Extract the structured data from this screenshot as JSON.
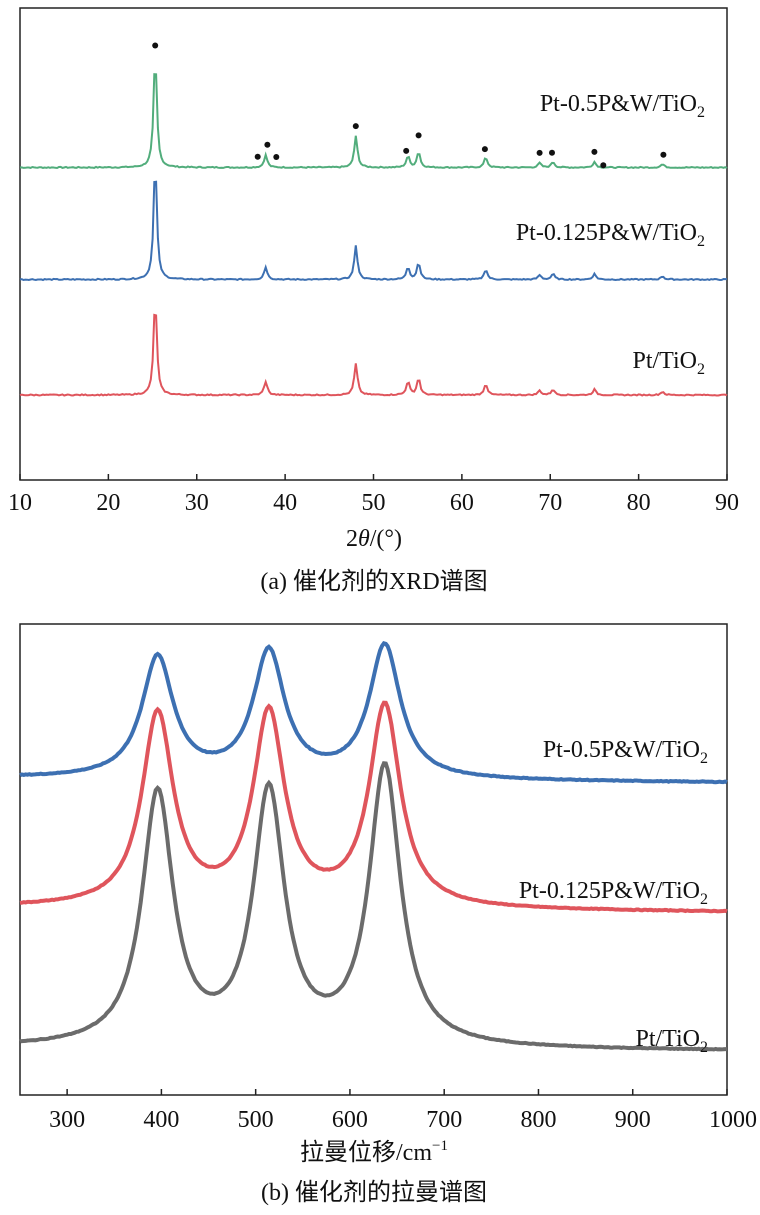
{
  "chart_data": [
    {
      "type": "line",
      "panel": "a",
      "caption": "(a) 催化剂的XRD谱图",
      "xlabel_prefix": "2",
      "xlabel_theta": "θ",
      "xlabel_suffix": "/(°)",
      "xlim": [
        10,
        90
      ],
      "xticks": [
        10,
        20,
        30,
        40,
        50,
        60,
        70,
        80,
        90
      ],
      "x_step": 0.2,
      "noise": 0.005,
      "colors": [
        "#52ad7c",
        "#3d70b2",
        "#df555c"
      ],
      "series": [
        {
          "name": "Pt-0.5P&W/TiO2",
          "label_main": "Pt-0.5P&W/TiO",
          "label_sub": "2",
          "color": "#52ad7c",
          "baseline": 0.125,
          "peaks": [
            [
              25.3,
              1.0
            ],
            [
              37.8,
              0.11
            ],
            [
              48.0,
              0.28
            ],
            [
              53.9,
              0.1
            ],
            [
              55.1,
              0.14
            ],
            [
              62.7,
              0.09
            ],
            [
              68.8,
              0.04
            ],
            [
              70.3,
              0.05
            ],
            [
              75.0,
              0.05
            ],
            [
              82.7,
              0.03
            ]
          ]
        },
        {
          "name": "Pt-0.125P&W/TiO2",
          "label_main": "Pt-0.125P&W/TiO",
          "label_sub": "2",
          "color": "#3d70b2",
          "baseline": 0.125,
          "peaks": [
            [
              25.3,
              1.05
            ],
            [
              37.8,
              0.11
            ],
            [
              48.0,
              0.3
            ],
            [
              53.9,
              0.11
            ],
            [
              55.1,
              0.15
            ],
            [
              62.7,
              0.09
            ],
            [
              68.8,
              0.04
            ],
            [
              70.3,
              0.05
            ],
            [
              75.0,
              0.05
            ],
            [
              82.7,
              0.03
            ]
          ]
        },
        {
          "name": "Pt/TiO2",
          "label_main": "Pt/TiO",
          "label_sub": "2",
          "color": "#df555c",
          "baseline": 0.125,
          "peaks": [
            [
              25.3,
              0.86
            ],
            [
              37.8,
              0.12
            ],
            [
              48.0,
              0.28
            ],
            [
              53.9,
              0.12
            ],
            [
              55.1,
              0.15
            ],
            [
              62.7,
              0.1
            ],
            [
              68.8,
              0.04
            ],
            [
              70.3,
              0.05
            ],
            [
              75.0,
              0.05
            ],
            [
              82.7,
              0.03
            ]
          ]
        }
      ],
      "marker_positions": [
        25.3,
        36.9,
        38.0,
        39.0,
        48.0,
        53.7,
        55.1,
        62.6,
        68.8,
        70.2,
        75.0,
        76.0,
        82.8
      ]
    },
    {
      "type": "line",
      "panel": "b",
      "caption": "(b) 催化剂的拉曼谱图",
      "xlabel_main": "拉曼位移/cm",
      "xlabel_sup": "−1",
      "xlim": [
        250,
        1000
      ],
      "xticks": [
        300,
        400,
        500,
        600,
        700,
        800,
        900,
        1000
      ],
      "x_step": 2,
      "noise": 0.002,
      "colors": [
        "#3d70b2",
        "#df555c",
        "#6b6b6b"
      ],
      "series": [
        {
          "name": "Pt-0.5P&W/TiO2",
          "label_main": "Pt-0.5P&W/TiO",
          "label_sub": "2",
          "color": "#3d70b2",
          "baseline_start": 1.76,
          "baseline_end": 1.735,
          "peaks": [
            [
              396,
              0.67
            ],
            [
              514,
              0.7
            ],
            [
              637,
              0.74
            ]
          ]
        },
        {
          "name": "Pt-0.125P&W/TiO2",
          "label_main": "Pt-0.125P&W/TiO",
          "label_sub": "2",
          "color": "#df555c",
          "baseline_start": 1.04,
          "baseline_end": 1.015,
          "peaks": [
            [
              396,
              1.07
            ],
            [
              514,
              1.07
            ],
            [
              637,
              1.12
            ]
          ]
        },
        {
          "name": "Pt/TiO2",
          "label_main": "Pt/TiO",
          "label_sub": "2",
          "color": "#6b6b6b",
          "baseline_start": 0.26,
          "baseline_end": 0.245,
          "peaks": [
            [
              396,
              1.4
            ],
            [
              514,
              1.4
            ],
            [
              637,
              1.55
            ]
          ]
        }
      ]
    }
  ]
}
